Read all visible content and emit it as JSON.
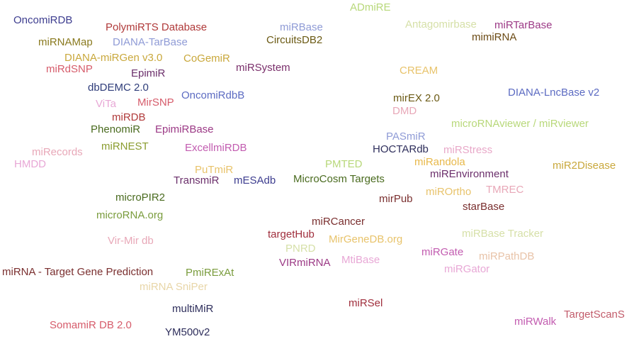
{
  "words": [
    {
      "text": "OncomiRDB",
      "color": "#3d3d8f"
    },
    {
      "text": "PolymiRTS Database",
      "color": "#b03a3a"
    },
    {
      "text": "miRBase",
      "color": "#8f9bd6"
    },
    {
      "text": "ADmiRE",
      "color": "#b8d87a"
    },
    {
      "text": "Antagomirbase",
      "color": "#d6e0a8"
    },
    {
      "text": "miRTarBase",
      "color": "#9c3a86"
    },
    {
      "text": "miRNAMap",
      "color": "#8a7a1f"
    },
    {
      "text": "DIANA-TarBase",
      "color": "#8f9bd6"
    },
    {
      "text": "CircuitsDB2",
      "color": "#6b5a14"
    },
    {
      "text": "mimiRNA",
      "color": "#6b4a14"
    },
    {
      "text": "DIANA-miRGen v3.0",
      "color": "#c9a83c"
    },
    {
      "text": "CoGemiR",
      "color": "#c9a83c"
    },
    {
      "text": "miRdSNP",
      "color": "#d65c6b"
    },
    {
      "text": "EpimiR",
      "color": "#6b2f6b"
    },
    {
      "text": "miRSystem",
      "color": "#7a2f6b"
    },
    {
      "text": "CREAM",
      "color": "#e8c36b"
    },
    {
      "text": "dbDEMC 2.0",
      "color": "#2f3d7a"
    },
    {
      "text": "OncomiRdbB",
      "color": "#5c6bc2"
    },
    {
      "text": "mirEX 2.0",
      "color": "#6b5a14"
    },
    {
      "text": "DIANA-LncBase v2",
      "color": "#5c6bc2"
    },
    {
      "text": "ViTa",
      "color": "#e8a8d6"
    },
    {
      "text": "MirSNP",
      "color": "#d65c6b"
    },
    {
      "text": "DMD",
      "color": "#e8a8b8"
    },
    {
      "text": "miRDB",
      "color": "#b03a3a"
    },
    {
      "text": "microRNAviewer / miRviewer",
      "color": "#b8d87a"
    },
    {
      "text": "PhenomiR",
      "color": "#4a6b1f"
    },
    {
      "text": "EpimiRBase",
      "color": "#9c3a86"
    },
    {
      "text": "PASmiR",
      "color": "#8f9bd6"
    },
    {
      "text": "miRecords",
      "color": "#e8a8b8"
    },
    {
      "text": "miRNEST",
      "color": "#8a9c2f"
    },
    {
      "text": "ExcellmiRDB",
      "color": "#c25cb0"
    },
    {
      "text": "HOCTARdb",
      "color": "#2f2f5c"
    },
    {
      "text": "miRStress",
      "color": "#e8a8c8"
    },
    {
      "text": "HMDD",
      "color": "#e8a8d6"
    },
    {
      "text": "PMTED",
      "color": "#b8d87a"
    },
    {
      "text": "miRandola",
      "color": "#e8b84a"
    },
    {
      "text": "miR2Disease",
      "color": "#c9a83c"
    },
    {
      "text": "PuTmiR",
      "color": "#e8c36b"
    },
    {
      "text": "miREnvironment",
      "color": "#6b2f6b"
    },
    {
      "text": "TransmiR",
      "color": "#6b2f6b"
    },
    {
      "text": "mESAdb",
      "color": "#3d3d8f"
    },
    {
      "text": "MicroCosm Targets",
      "color": "#4a6b1f"
    },
    {
      "text": "miROrtho",
      "color": "#e8c36b"
    },
    {
      "text": "TMREC",
      "color": "#e8a8b8"
    },
    {
      "text": "microPIR2",
      "color": "#4a6b1f"
    },
    {
      "text": "mirPub",
      "color": "#7a2f2f"
    },
    {
      "text": "starBase",
      "color": "#7a2f2f"
    },
    {
      "text": "microRNA.org",
      "color": "#7a9c3d"
    },
    {
      "text": "miRCancer",
      "color": "#7a2f2f"
    },
    {
      "text": "targetHub",
      "color": "#a02f3d"
    },
    {
      "text": "miRBase Tracker",
      "color": "#d6e0a8"
    },
    {
      "text": "Vir-Mir db",
      "color": "#e8a8b8"
    },
    {
      "text": "MirGeneDB.org",
      "color": "#e8c36b"
    },
    {
      "text": "PNRD",
      "color": "#d6e0a8"
    },
    {
      "text": "miRGate",
      "color": "#c25cb0"
    },
    {
      "text": "miRPathDB",
      "color": "#e8c3a8"
    },
    {
      "text": "MtiBase",
      "color": "#e8a8d6"
    },
    {
      "text": "VIRmiRNA",
      "color": "#9c3a86"
    },
    {
      "text": "miRNA - Target Gene Prediction",
      "color": "#7a2f2f"
    },
    {
      "text": "PmiRExAt",
      "color": "#7a9c3d"
    },
    {
      "text": "miRGator",
      "color": "#e8a8d6"
    },
    {
      "text": "miRNA SniPer",
      "color": "#e8d6a8"
    },
    {
      "text": "miRSel",
      "color": "#a02f3d"
    },
    {
      "text": "multiMiR",
      "color": "#2f2f5c"
    },
    {
      "text": "TargetScanS",
      "color": "#c25c6b"
    },
    {
      "text": "miRWalk",
      "color": "#c25cb0"
    },
    {
      "text": "SomamiR DB 2.0",
      "color": "#d65c6b"
    },
    {
      "text": "YM500v2",
      "color": "#2f2f5c"
    }
  ]
}
